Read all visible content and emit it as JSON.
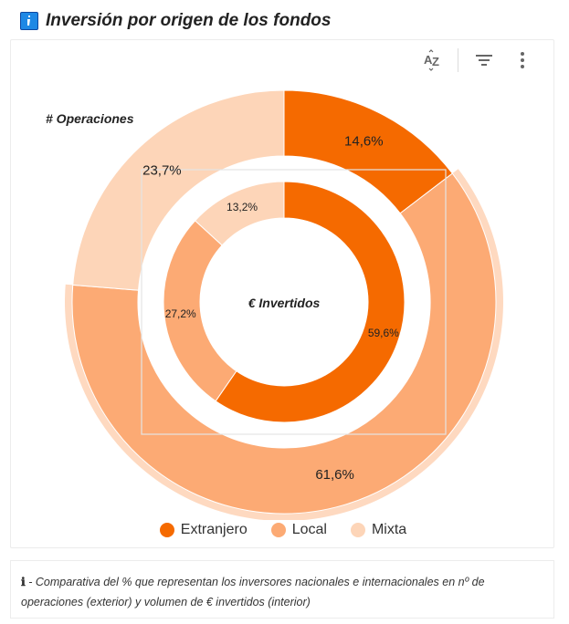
{
  "header": {
    "title": "Inversión por origen de los fondos",
    "icon": "info-icon"
  },
  "toolbar": {
    "sort_icon": "sort-az-icon",
    "filter_icon": "filter-icon",
    "more_icon": "more-vert-icon"
  },
  "colors": {
    "Extranjero": "#f56a00",
    "Local": "#fcaa74",
    "Mixta": "#fdd5b8"
  },
  "chart_data": {
    "type": "donut-nested",
    "categories": [
      "Extranjero",
      "Local",
      "Mixta"
    ],
    "series": [
      {
        "name": "# Operaciones",
        "ring": "outer",
        "values": [
          14.6,
          61.6,
          23.7
        ],
        "labels": [
          "14,6%",
          "61,6%",
          "23,7%"
        ]
      },
      {
        "name": "€ Invertidos",
        "ring": "inner",
        "values": [
          59.6,
          27.2,
          13.2
        ],
        "labels": [
          "59,6%",
          "27,2%",
          "13,2%"
        ]
      }
    ],
    "legend": [
      "Extranjero",
      "Local",
      "Mixta"
    ],
    "legend_position": "bottom",
    "highlighted": "Local"
  },
  "note": {
    "prefix": "ℹ",
    "text": " - Comparativa del % que representan los inversores nacionales e internacionales en nº de operaciones (exterior) y volumen de € invertidos (interior)"
  }
}
